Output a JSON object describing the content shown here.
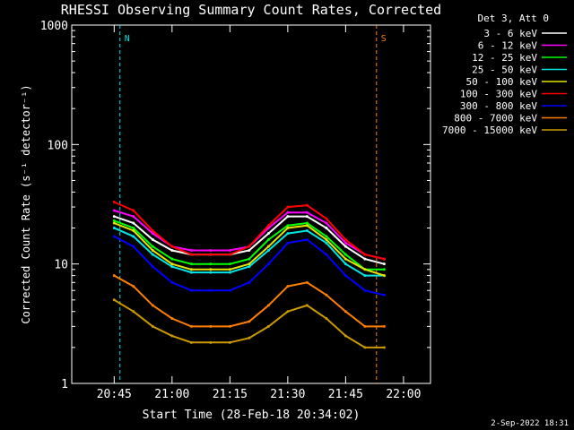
{
  "chart_data": {
    "type": "line",
    "title": "RHESSI Observing Summary Count Rates, Corrected",
    "xlabel": "Start Time (28-Feb-18 20:34:02)",
    "ylabel": "Corrected Count Rate (s⁻¹ detector⁻¹)",
    "y_scale": "log",
    "ylim": [
      1,
      1000
    ],
    "xlim": [
      "20:34",
      "22:07"
    ],
    "x_ticks": [
      "20:45",
      "21:00",
      "21:15",
      "21:30",
      "21:45",
      "22:00"
    ],
    "y_ticks": [
      "1",
      "10",
      "100",
      "1000"
    ],
    "legend_title": "Det 3, Att 0",
    "legend_position": "outside-right",
    "footer_date": "2-Sep-2022 18:31",
    "markers": [
      {
        "label": "N",
        "x": "20:46:30",
        "color": "#00e5e5"
      },
      {
        "label": "S",
        "x": "21:53",
        "color": "#ff7f00"
      }
    ],
    "series": [
      {
        "name": "3 - 6 keV",
        "color": "#ffffff",
        "x": [
          "20:45",
          "20:50",
          "20:55",
          "21:00",
          "21:05",
          "21:10",
          "21:15",
          "21:20",
          "21:25",
          "21:30",
          "21:35",
          "21:40",
          "21:45",
          "21:50",
          "21:55"
        ],
        "values": [
          25,
          22,
          16,
          13,
          12,
          12,
          12,
          13,
          18,
          25,
          25,
          20,
          14,
          11,
          10
        ]
      },
      {
        "name": "6 - 12 keV",
        "color": "#ff00ff",
        "x": [
          "20:45",
          "20:50",
          "20:55",
          "21:00",
          "21:05",
          "21:10",
          "21:15",
          "21:20",
          "21:25",
          "21:30",
          "21:35",
          "21:40",
          "21:45",
          "21:50",
          "21:55"
        ],
        "values": [
          28,
          25,
          18,
          14,
          13,
          13,
          13,
          14,
          20,
          27,
          27,
          22,
          15,
          12,
          11
        ]
      },
      {
        "name": "12 - 25 keV",
        "color": "#00ff00",
        "x": [
          "20:45",
          "20:50",
          "20:55",
          "21:00",
          "21:05",
          "21:10",
          "21:15",
          "21:20",
          "21:25",
          "21:30",
          "21:35",
          "21:40",
          "21:45",
          "21:50",
          "21:55"
        ],
        "values": [
          23,
          20,
          14,
          11,
          10,
          10,
          10,
          11,
          16,
          21,
          22,
          17,
          12,
          9,
          9
        ]
      },
      {
        "name": "25 - 50 keV",
        "color": "#00e5e5",
        "x": [
          "20:45",
          "20:50",
          "20:55",
          "21:00",
          "21:05",
          "21:10",
          "21:15",
          "21:20",
          "21:25",
          "21:30",
          "21:35",
          "21:40",
          "21:45",
          "21:50",
          "21:55"
        ],
        "values": [
          20,
          17,
          12,
          9.5,
          8.5,
          8.5,
          8.5,
          9.5,
          13,
          18,
          19,
          15,
          10,
          8,
          8
        ]
      },
      {
        "name": "50 - 100 keV",
        "color": "#e5e500",
        "x": [
          "20:45",
          "20:50",
          "20:55",
          "21:00",
          "21:05",
          "21:10",
          "21:15",
          "21:20",
          "21:25",
          "21:30",
          "21:35",
          "21:40",
          "21:45",
          "21:50",
          "21:55"
        ],
        "values": [
          22,
          19,
          13,
          10,
          9,
          9,
          9,
          10,
          14,
          20,
          21,
          16,
          11,
          9,
          8
        ]
      },
      {
        "name": "100 - 300 keV",
        "color": "#ff0000",
        "x": [
          "20:45",
          "20:50",
          "20:55",
          "21:00",
          "21:05",
          "21:10",
          "21:15",
          "21:20",
          "21:25",
          "21:30",
          "21:35",
          "21:40",
          "21:45",
          "21:50",
          "21:55"
        ],
        "values": [
          33,
          28,
          19,
          14,
          12,
          12,
          12,
          14,
          21,
          30,
          31,
          24,
          16,
          12,
          11
        ]
      },
      {
        "name": "300 - 800 keV",
        "color": "#0000ff",
        "x": [
          "20:45",
          "20:50",
          "20:55",
          "21:00",
          "21:05",
          "21:10",
          "21:15",
          "21:20",
          "21:25",
          "21:30",
          "21:35",
          "21:40",
          "21:45",
          "21:50",
          "21:55"
        ],
        "values": [
          17,
          14,
          9.5,
          7,
          6,
          6,
          6,
          7,
          10,
          15,
          16,
          12,
          8,
          6,
          5.5
        ]
      },
      {
        "name": "800 - 7000 keV",
        "color": "#ff7f00",
        "x": [
          "20:45",
          "20:50",
          "20:55",
          "21:00",
          "21:05",
          "21:10",
          "21:15",
          "21:20",
          "21:25",
          "21:30",
          "21:35",
          "21:40",
          "21:45",
          "21:50",
          "21:55"
        ],
        "values": [
          8,
          6.5,
          4.5,
          3.5,
          3,
          3,
          3,
          3.3,
          4.5,
          6.5,
          7,
          5.5,
          4,
          3,
          3
        ]
      },
      {
        "name": "7000 - 15000 keV",
        "color": "#cc9900",
        "x": [
          "20:45",
          "20:50",
          "20:55",
          "21:00",
          "21:05",
          "21:10",
          "21:15",
          "21:20",
          "21:25",
          "21:30",
          "21:35",
          "21:40",
          "21:45",
          "21:50",
          "21:55"
        ],
        "values": [
          5,
          4,
          3,
          2.5,
          2.2,
          2.2,
          2.2,
          2.4,
          3,
          4,
          4.5,
          3.5,
          2.5,
          2,
          2
        ]
      }
    ]
  }
}
